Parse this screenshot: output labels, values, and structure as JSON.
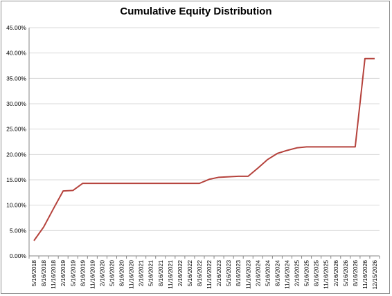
{
  "chart_data": {
    "type": "line",
    "title": "Cumulative Equity Distribution",
    "xlabel": "",
    "ylabel": "",
    "ylim": [
      0,
      45
    ],
    "y_ticks": [
      "0.00%",
      "5.00%",
      "10.00%",
      "15.00%",
      "20.00%",
      "25.00%",
      "30.00%",
      "35.00%",
      "40.00%",
      "45.00%"
    ],
    "grid": "horizontal",
    "legend": "none",
    "line_color": "#b5423c",
    "categories": [
      "5/16/2018",
      "8/16/2018",
      "11/16/2018",
      "2/16/2019",
      "5/16/2019",
      "8/16/2019",
      "11/16/2019",
      "2/16/2020",
      "5/16/2020",
      "8/16/2020",
      "11/16/2020",
      "2/16/2021",
      "5/16/2021",
      "8/16/2021",
      "11/16/2021",
      "2/16/2022",
      "5/16/2022",
      "8/16/2022",
      "11/16/2022",
      "2/16/2023",
      "5/16/2023",
      "8/16/2023",
      "11/16/2023",
      "2/16/2024",
      "5/16/2024",
      "8/16/2024",
      "11/16/2024",
      "2/16/2025",
      "5/16/2025",
      "8/16/2025",
      "11/16/2025",
      "2/16/2026",
      "5/16/2026",
      "8/16/2026",
      "11/16/2026",
      "12/15/2026"
    ],
    "values": [
      3.0,
      5.7,
      9.3,
      12.8,
      12.9,
      14.3,
      14.3,
      14.3,
      14.3,
      14.3,
      14.3,
      14.3,
      14.3,
      14.3,
      14.3,
      14.3,
      14.3,
      14.3,
      15.1,
      15.5,
      15.6,
      15.7,
      15.7,
      17.3,
      19.0,
      20.2,
      20.8,
      21.3,
      21.5,
      21.5,
      21.5,
      21.5,
      21.5,
      21.5,
      38.9,
      38.9
    ]
  }
}
